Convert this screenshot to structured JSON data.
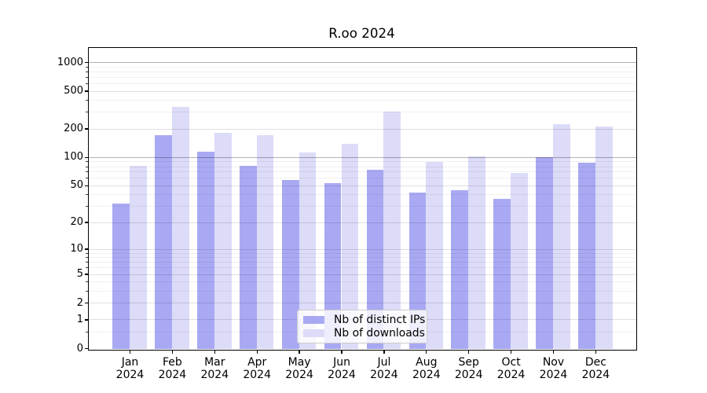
{
  "chart_data": {
    "type": "bar",
    "title": "R.oo 2024",
    "categories": [
      "Jan",
      "Feb",
      "Mar",
      "Apr",
      "May",
      "Jun",
      "Jul",
      "Aug",
      "Sep",
      "Oct",
      "Nov",
      "Dec"
    ],
    "category_year": "2024",
    "series": [
      {
        "name": "Nb of distinct IPs",
        "color": "#a9a9f3",
        "values": [
          32,
          170,
          115,
          81,
          57,
          53,
          74,
          42,
          44,
          36,
          100,
          88
        ]
      },
      {
        "name": "Nb of downloads",
        "color": "#dcdbf8",
        "values": [
          81,
          340,
          180,
          170,
          112,
          138,
          300,
          89,
          102,
          68,
          222,
          211
        ]
      }
    ],
    "xlabel": "",
    "ylabel": "",
    "yscale": "log1p",
    "yticks": [
      0,
      1,
      2,
      5,
      10,
      20,
      50,
      100,
      200,
      500,
      1000
    ],
    "emphasized_gridlines": [
      100,
      1000
    ],
    "minor_gridlines": [
      0.5,
      3,
      4,
      6,
      7,
      8,
      9,
      30,
      40,
      60,
      70,
      80,
      90,
      300,
      400,
      600,
      700,
      800,
      900
    ],
    "ylim": [
      0,
      1400
    ],
    "grid": "on",
    "legend_position": "lower center",
    "bar_colors": {
      "distinct_ips": "#a9a9f3",
      "downloads": "#dcdbf8"
    }
  }
}
